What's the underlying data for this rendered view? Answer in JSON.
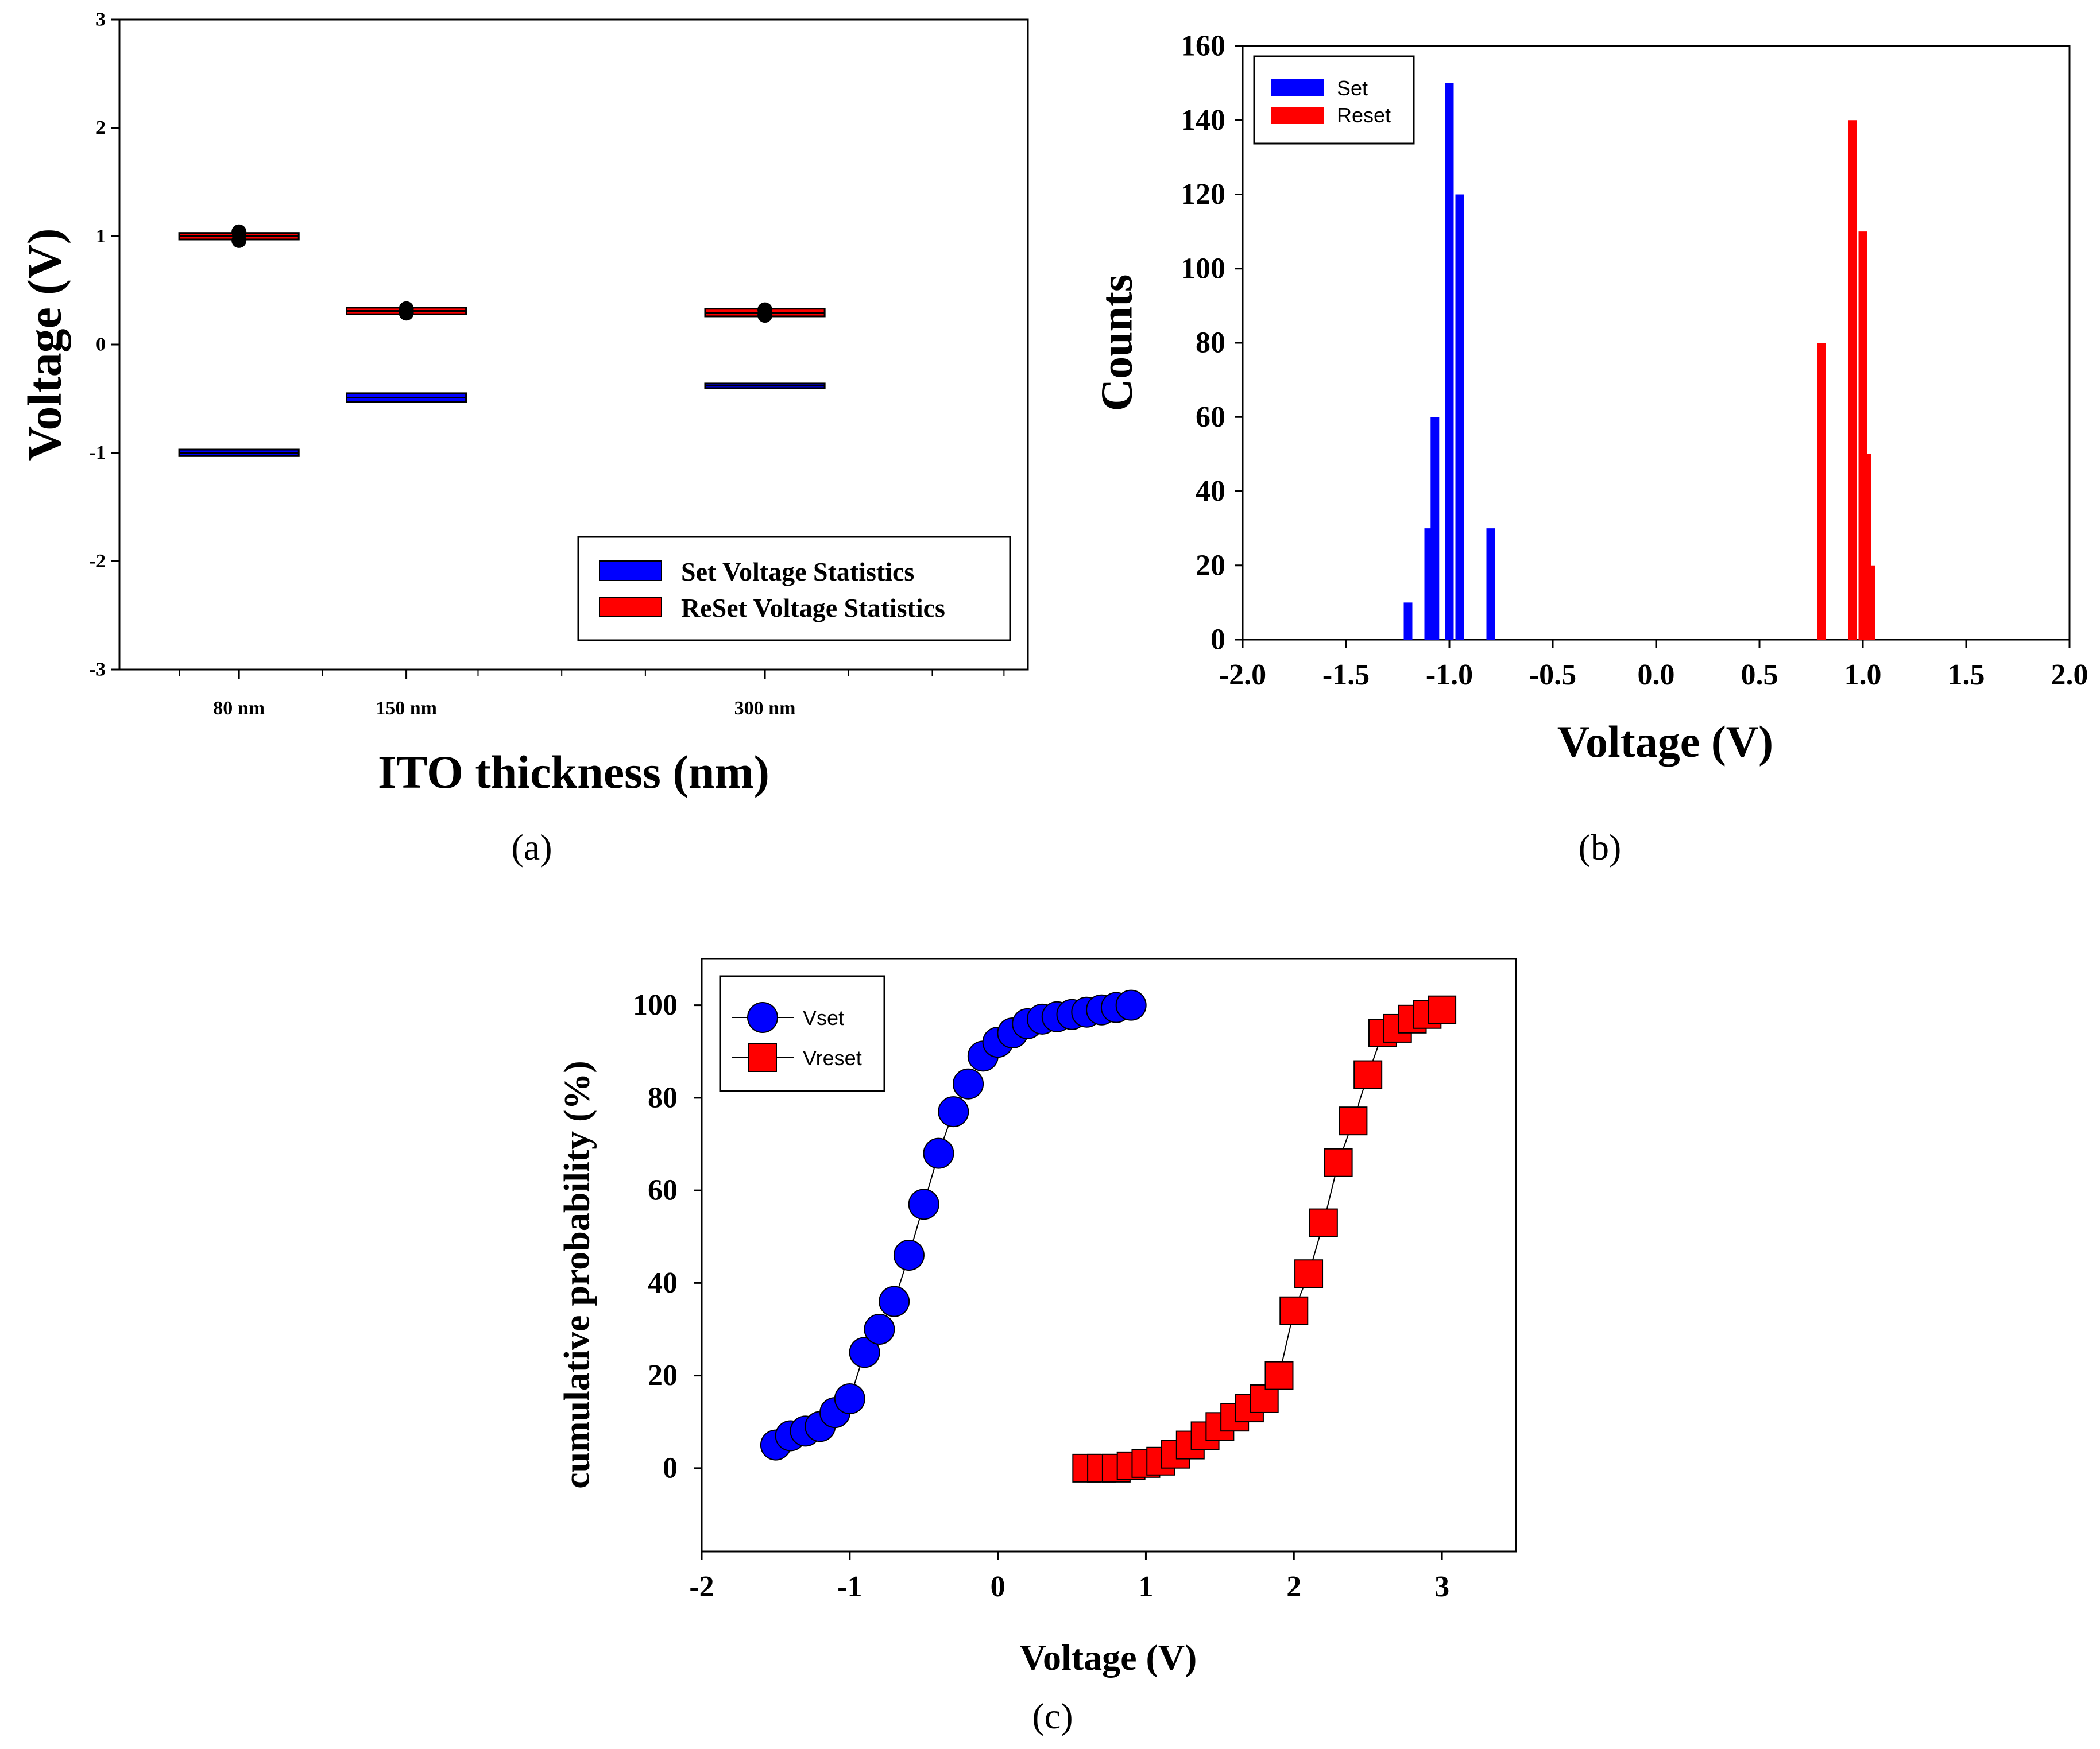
{
  "colors": {
    "set": "#0000ff",
    "reset": "#ff0000",
    "axis": "#000000"
  },
  "chart_data": [
    {
      "id": "a",
      "type": "box",
      "panel_label": "(a)",
      "title": "",
      "xlabel": "ITO thickness (nm)",
      "ylabel": "Voltage (V)",
      "ylim": [
        -3,
        3
      ],
      "yticks": [
        "-3",
        "-2",
        "-1",
        "0",
        "1",
        "2",
        "3"
      ],
      "categories": [
        "80 nm",
        "150 nm",
        "300 nm"
      ],
      "category_x": [
        80,
        150,
        300
      ],
      "xlim": [
        30,
        410
      ],
      "series": [
        {
          "name": "Set Voltage Statistics",
          "color": "#0000ff",
          "median": [
            -1.0,
            -0.49,
            -0.38
          ],
          "q1": [
            -1.03,
            -0.53,
            -0.4
          ],
          "q3": [
            -0.97,
            -0.45,
            -0.36
          ],
          "outliers": []
        },
        {
          "name": "ReSet Voltage Statistics",
          "color": "#ff0000",
          "median": [
            1.0,
            0.31,
            0.29
          ],
          "q1": [
            0.97,
            0.28,
            0.26
          ],
          "q3": [
            1.03,
            0.34,
            0.33
          ],
          "outliers": [
            [
              0.96,
              1.04
            ],
            [
              0.29,
              0.33
            ],
            [
              0.27,
              0.32
            ]
          ]
        }
      ],
      "legend": [
        "Set Voltage Statistics",
        "ReSet Voltage Statistics"
      ],
      "legend_position": "bottom-right"
    },
    {
      "id": "b",
      "type": "bar",
      "panel_label": "(b)",
      "title": "",
      "xlabel": "Voltage (V)",
      "ylabel": "Counts",
      "xlim": [
        -2.0,
        2.0
      ],
      "ylim": [
        0,
        160
      ],
      "xticks": [
        "-2.0",
        "-1.5",
        "-1.0",
        "-0.5",
        "0.0",
        "0.5",
        "1.0",
        "1.5",
        "2.0"
      ],
      "yticks": [
        "0",
        "20",
        "40",
        "60",
        "80",
        "100",
        "120",
        "140",
        "160"
      ],
      "series": [
        {
          "name": "Set",
          "color": "#0000ff",
          "x": [
            -1.2,
            -1.1,
            -1.07,
            -1.0,
            -0.95,
            -0.8
          ],
          "values": [
            10,
            30,
            60,
            150,
            120,
            30
          ]
        },
        {
          "name": "Reset",
          "color": "#ff0000",
          "x": [
            0.8,
            0.95,
            1.0,
            1.02,
            1.04
          ],
          "values": [
            80,
            140,
            110,
            50,
            20
          ]
        }
      ],
      "legend": [
        "Set",
        "Reset"
      ],
      "legend_position": "top-left"
    },
    {
      "id": "c",
      "type": "line",
      "panel_label": "(c)",
      "title": "",
      "xlabel": "Voltage (V)",
      "ylabel": "cumulative probability (%)",
      "xlim": [
        -2,
        3.5
      ],
      "ylim": [
        -18,
        110
      ],
      "xticks": [
        "-2",
        "-1",
        "0",
        "1",
        "2",
        "3"
      ],
      "yticks": [
        "0",
        "20",
        "40",
        "60",
        "80",
        "100"
      ],
      "series": [
        {
          "name": "Vset",
          "color": "#0000ff",
          "marker": "circle",
          "x": [
            -1.5,
            -1.4,
            -1.3,
            -1.2,
            -1.1,
            -1.0,
            -0.9,
            -0.8,
            -0.7,
            -0.6,
            -0.5,
            -0.4,
            -0.3,
            -0.2,
            -0.1,
            0.0,
            0.1,
            0.2,
            0.3,
            0.4,
            0.5,
            0.6,
            0.7,
            0.8,
            0.9
          ],
          "y": [
            5,
            7,
            8,
            9,
            12,
            15,
            25,
            30,
            36,
            46,
            57,
            68,
            77,
            83,
            89,
            92,
            94,
            96,
            97,
            97.5,
            98,
            98.5,
            99,
            99.5,
            100
          ]
        },
        {
          "name": "Vreset",
          "color": "#ff0000",
          "marker": "square",
          "x": [
            0.6,
            0.7,
            0.8,
            0.9,
            1.0,
            1.1,
            1.2,
            1.3,
            1.4,
            1.5,
            1.6,
            1.7,
            1.8,
            1.9,
            2.0,
            2.1,
            2.2,
            2.3,
            2.4,
            2.5,
            2.6,
            2.7,
            2.8,
            2.9,
            3.0
          ],
          "y": [
            0,
            0,
            0,
            0.5,
            1,
            1.5,
            3,
            5,
            7,
            9,
            11,
            13,
            15,
            20,
            34,
            42,
            53,
            66,
            75,
            85,
            94,
            95,
            97,
            98,
            99
          ]
        }
      ],
      "legend": [
        "Vset",
        "Vreset"
      ],
      "legend_position": "top-left"
    }
  ]
}
